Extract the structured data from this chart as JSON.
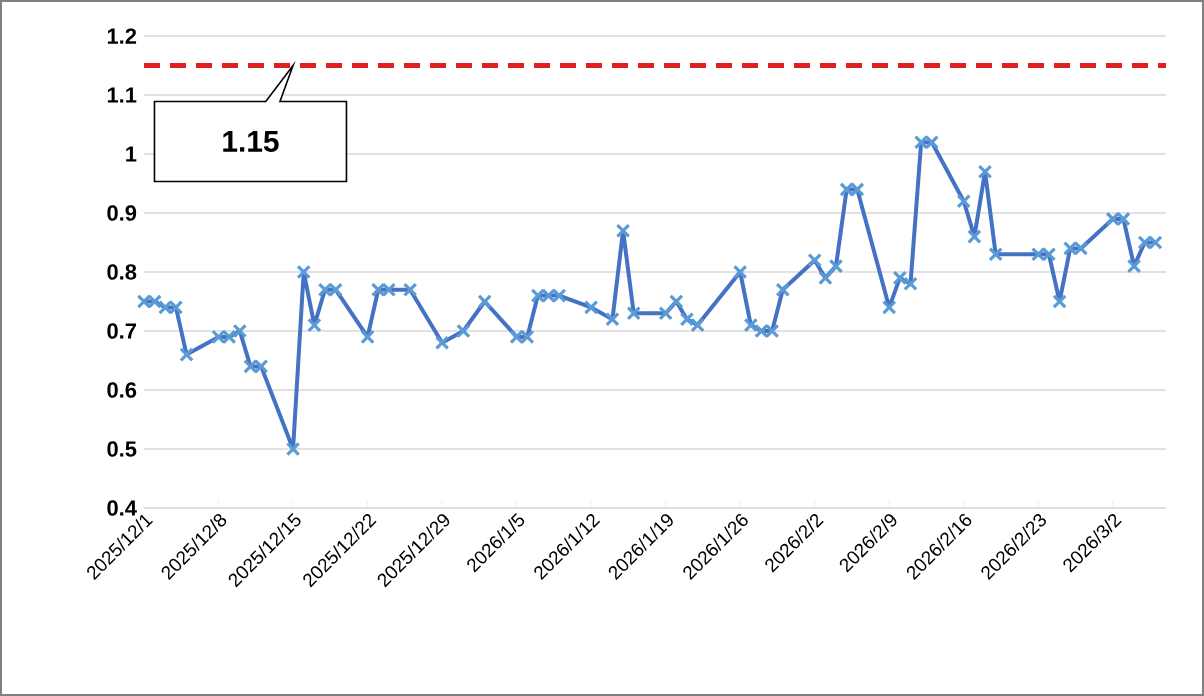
{
  "chart_data": {
    "type": "line",
    "x": [
      "2025-12-01",
      "2025-12-02",
      "2025-12-03",
      "2025-12-04",
      "2025-12-05",
      "2025-12-08",
      "2025-12-09",
      "2025-12-10",
      "2025-12-11",
      "2025-12-12",
      "2025-12-15",
      "2025-12-16",
      "2025-12-17",
      "2025-12-18",
      "2025-12-19",
      "2025-12-22",
      "2025-12-23",
      "2025-12-24",
      "2025-12-26",
      "2025-12-29",
      "2025-12-31",
      "2026-01-02",
      "2026-01-05",
      "2026-01-06",
      "2026-01-07",
      "2026-01-08",
      "2026-01-09",
      "2026-01-12",
      "2026-01-14",
      "2026-01-15",
      "2026-01-16",
      "2026-01-19",
      "2026-01-20",
      "2026-01-21",
      "2026-01-22",
      "2026-01-26",
      "2026-01-27",
      "2026-01-28",
      "2026-01-29",
      "2026-01-30",
      "2026-02-02",
      "2026-02-03",
      "2026-02-04",
      "2026-02-05",
      "2026-02-06",
      "2026-02-09",
      "2026-02-10",
      "2026-02-11",
      "2026-02-12",
      "2026-02-13",
      "2026-02-16",
      "2026-02-17",
      "2026-02-18",
      "2026-02-19",
      "2026-02-23",
      "2026-02-24",
      "2026-02-25",
      "2026-02-26",
      "2026-02-27",
      "2026-03-02",
      "2026-03-03",
      "2026-03-04",
      "2026-03-05",
      "2026-03-06"
    ],
    "series": [
      {
        "color": "#4472c4",
        "values": [
          0.75,
          0.75,
          0.74,
          0.74,
          0.66,
          0.69,
          0.69,
          0.7,
          0.64,
          0.64,
          0.5,
          0.8,
          0.71,
          0.77,
          0.77,
          0.69,
          0.77,
          0.77,
          0.77,
          0.68,
          0.7,
          0.75,
          0.69,
          0.69,
          0.76,
          0.76,
          0.76,
          0.74,
          0.72,
          0.87,
          0.73,
          0.73,
          0.75,
          0.72,
          0.71,
          0.8,
          0.71,
          0.7,
          0.7,
          0.77,
          0.82,
          0.79,
          0.81,
          0.94,
          0.94,
          0.74,
          0.79,
          0.78,
          1.02,
          1.02,
          0.92,
          0.86,
          0.97,
          0.83,
          0.83,
          0.83,
          0.75,
          0.84,
          0.84,
          0.89,
          0.89,
          0.81,
          0.85,
          0.85
        ]
      }
    ],
    "xlim": [
      "2025-12-01",
      "2026-03-07"
    ],
    "xticks": [
      {
        "value": "2025-12-01",
        "label": "2025/12/1"
      },
      {
        "value": "2025-12-08",
        "label": "2025/12/8"
      },
      {
        "value": "2025-12-15",
        "label": "2025/12/15"
      },
      {
        "value": "2025-12-22",
        "label": "2025/12/22"
      },
      {
        "value": "2025-12-29",
        "label": "2025/12/29"
      },
      {
        "value": "2026-01-05",
        "label": "2026/1/5"
      },
      {
        "value": "2026-01-12",
        "label": "2026/1/12"
      },
      {
        "value": "2026-01-19",
        "label": "2026/1/19"
      },
      {
        "value": "2026-01-26",
        "label": "2026/1/26"
      },
      {
        "value": "2026-02-02",
        "label": "2026/2/2"
      },
      {
        "value": "2026-02-09",
        "label": "2026/2/9"
      },
      {
        "value": "2026-02-16",
        "label": "2026/2/16"
      },
      {
        "value": "2026-02-23",
        "label": "2026/2/23"
      },
      {
        "value": "2026-03-02",
        "label": "2026/3/2"
      }
    ],
    "ylim": [
      0.4,
      1.2
    ],
    "yticks": [
      0.4,
      0.5,
      0.6,
      0.7,
      0.8,
      0.9,
      1,
      1.1,
      1.2
    ],
    "ref_lines": [
      {
        "axis": "y",
        "value": 1.15,
        "label": "1.15",
        "color": "#e02020",
        "line_style": "dashed"
      }
    ],
    "grid": "y",
    "marker": "cross",
    "line_style": "solid"
  }
}
